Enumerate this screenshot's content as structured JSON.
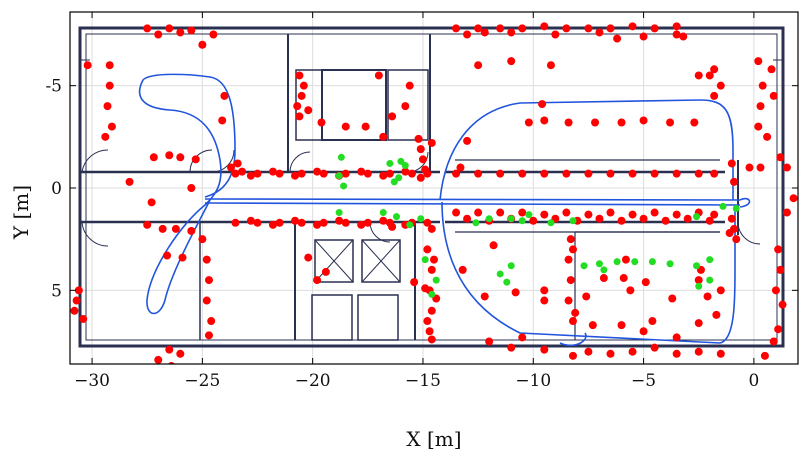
{
  "chart_data": {
    "type": "scatter",
    "title": "",
    "xlabel": "X [m]",
    "ylabel": "Y [m]",
    "xlim": [
      -31,
      2
    ],
    "ylim": [
      -8.6,
      8.6
    ],
    "y_inverted": true,
    "xticks": [
      -30,
      -25,
      -20,
      -15,
      -10,
      -5,
      0
    ],
    "xtick_labels": [
      "−30",
      "−25",
      "−20",
      "−15",
      "−10",
      "−5",
      "0"
    ],
    "yticks": [
      -5,
      0,
      5
    ],
    "ytick_labels": [
      "-5",
      "0",
      "5"
    ],
    "grid": true,
    "colors": {
      "red_points": "#ff0000",
      "green_points": "#22dd22",
      "trajectory": "#2255dd",
      "walls": "#2a3050"
    },
    "series": [
      {
        "kind": "red_points",
        "points": [
          [
            -29.2,
            -5
          ],
          [
            -29.3,
            -4
          ],
          [
            -29.1,
            -3
          ],
          [
            -29.4,
            -2.5
          ],
          [
            -29.2,
            -6
          ],
          [
            -30.2,
            -6
          ],
          [
            -30.8,
            6
          ],
          [
            -30.6,
            5
          ],
          [
            -30.7,
            5.5
          ],
          [
            -30.4,
            6.4
          ],
          [
            -27.5,
            -7.8
          ],
          [
            -26.5,
            -7.8
          ],
          [
            -26,
            -7.6
          ],
          [
            -25.5,
            -7.7
          ],
          [
            -27,
            -7.5
          ],
          [
            -26.5,
            7.9
          ],
          [
            -26,
            8.1
          ],
          [
            -27,
            8.4
          ],
          [
            -26.4,
            8.7
          ],
          [
            -27.2,
            -1.5
          ],
          [
            -26.5,
            -1.6
          ],
          [
            -26,
            -1.5
          ],
          [
            -25.3,
            -1.4
          ],
          [
            -27.5,
            1.8
          ],
          [
            -26.8,
            2
          ],
          [
            -26.2,
            2
          ],
          [
            -25.5,
            2.1
          ],
          [
            -26.6,
            3.3
          ],
          [
            -25.9,
            3.4
          ],
          [
            -25,
            2.5
          ],
          [
            -24.8,
            3.5
          ],
          [
            -24.7,
            4.5
          ],
          [
            -24.8,
            5.5
          ],
          [
            -24.6,
            6.5
          ],
          [
            -24.7,
            7.2
          ],
          [
            -25,
            -7
          ],
          [
            -24.5,
            -7.5
          ],
          [
            -24.1,
            -3.3
          ],
          [
            -24,
            -4.5
          ],
          [
            -23.7,
            -1
          ],
          [
            -23.4,
            -1.2
          ],
          [
            -23.2,
            -0.8
          ],
          [
            -25.5,
            0
          ],
          [
            -27.3,
            0.7
          ],
          [
            -28.3,
            -0.3
          ],
          [
            -23.5,
            -0.7
          ],
          [
            -22.5,
            -0.7
          ],
          [
            -21.5,
            -0.7
          ],
          [
            -20.5,
            -0.7
          ],
          [
            -19.5,
            -0.7
          ],
          [
            -18.5,
            -0.7
          ],
          [
            -17.5,
            -0.7
          ],
          [
            -16.5,
            -0.7
          ],
          [
            -15.5,
            -0.7
          ],
          [
            -14.8,
            -0.7
          ],
          [
            -23.5,
            1.7
          ],
          [
            -22.5,
            1.7
          ],
          [
            -21.5,
            1.7
          ],
          [
            -20.5,
            1.7
          ],
          [
            -19.5,
            1.7
          ],
          [
            -18.5,
            1.7
          ],
          [
            -17.5,
            1.7
          ],
          [
            -16.5,
            1.7
          ],
          [
            -15.5,
            1.7
          ],
          [
            -14.8,
            1.7
          ],
          [
            -22.8,
            -0.6
          ],
          [
            -21.8,
            -0.8
          ],
          [
            -20.8,
            -0.6
          ],
          [
            -19.8,
            -0.8
          ],
          [
            -18.8,
            -0.6
          ],
          [
            -17.8,
            -0.8
          ],
          [
            -16.8,
            -0.6
          ],
          [
            -15.8,
            -0.8
          ],
          [
            -22.8,
            1.6
          ],
          [
            -21.8,
            1.8
          ],
          [
            -20.8,
            1.6
          ],
          [
            -19.8,
            1.8
          ],
          [
            -18.8,
            1.6
          ],
          [
            -17.8,
            1.8
          ],
          [
            -16.8,
            1.6
          ],
          [
            -15.8,
            1.8
          ],
          [
            -20.6,
            -5.5
          ],
          [
            -20.5,
            -4.5
          ],
          [
            -20.6,
            -3.5
          ],
          [
            -20.4,
            -5
          ],
          [
            -20.7,
            -4
          ],
          [
            -20.2,
            -3.8
          ],
          [
            -19.6,
            -3.2
          ],
          [
            -17.6,
            -3
          ],
          [
            -18.5,
            -3
          ],
          [
            -16.8,
            -2.5
          ],
          [
            -15.8,
            -4
          ],
          [
            -15.6,
            -5
          ],
          [
            -17,
            -5.5
          ],
          [
            -16.4,
            -3.5
          ],
          [
            -15.2,
            -2.4
          ],
          [
            -15.1,
            -1.9
          ],
          [
            -15,
            -1.4
          ],
          [
            -14.9,
            -0.9
          ],
          [
            -15.1,
            -0.5
          ],
          [
            -14.6,
            -2.2
          ],
          [
            -14.6,
            2
          ],
          [
            -14.8,
            3
          ],
          [
            -14.6,
            4
          ],
          [
            -14.7,
            5
          ],
          [
            -14.6,
            6
          ],
          [
            -14.7,
            7
          ],
          [
            -14.5,
            3.5
          ],
          [
            -14.8,
            6.5
          ],
          [
            -14.6,
            7.4
          ],
          [
            -14.4,
            5.4
          ],
          [
            -20.2,
            3.4
          ],
          [
            -19.4,
            4.1
          ],
          [
            -19.8,
            4.5
          ],
          [
            -15.4,
            4.6
          ],
          [
            -14.9,
            4.9
          ],
          [
            -16.4,
            1.9
          ],
          [
            -13.5,
            -7.8
          ],
          [
            -12.5,
            -7.8
          ],
          [
            -11.5,
            -7.8
          ],
          [
            -10.5,
            -7.8
          ],
          [
            -9.5,
            -7.9
          ],
          [
            -8.5,
            -7.8
          ],
          [
            -7.5,
            -7.8
          ],
          [
            -6.5,
            -7.8
          ],
          [
            -5.5,
            -7.9
          ],
          [
            -4.5,
            -7.8
          ],
          [
            -3.5,
            -7.9
          ],
          [
            -13,
            -7.5
          ],
          [
            -11,
            -7.6
          ],
          [
            -9,
            -7.5
          ],
          [
            -7,
            -7.6
          ],
          [
            -6.2,
            -7.3
          ],
          [
            -5,
            -7.4
          ],
          [
            -3.2,
            -7.4
          ],
          [
            -12.2,
            -7.6
          ],
          [
            -13.5,
            -0.7
          ],
          [
            -12.5,
            -0.7
          ],
          [
            -11.5,
            -0.7
          ],
          [
            -10.5,
            -0.7
          ],
          [
            -9.5,
            -0.7
          ],
          [
            -8.5,
            -0.7
          ],
          [
            -7.5,
            -0.7
          ],
          [
            -6.5,
            -0.7
          ],
          [
            -5.5,
            -0.7
          ],
          [
            -4.5,
            -0.7
          ],
          [
            -3.5,
            -0.7
          ],
          [
            -2.5,
            -0.7
          ],
          [
            -1.8,
            -0.7
          ],
          [
            -13.5,
            1.2
          ],
          [
            -12.5,
            1.2
          ],
          [
            -11.5,
            1.2
          ],
          [
            -10.5,
            1.2
          ],
          [
            -9.5,
            1.3
          ],
          [
            -8.5,
            1.2
          ],
          [
            -7.5,
            1.3
          ],
          [
            -6.5,
            1.2
          ],
          [
            -5.5,
            1.3
          ],
          [
            -4.5,
            1.2
          ],
          [
            -3.5,
            1.3
          ],
          [
            -2.5,
            1.2
          ],
          [
            -1.8,
            1.3
          ],
          [
            -13,
            1.5
          ],
          [
            -12,
            1.6
          ],
          [
            -11,
            1.5
          ],
          [
            -10,
            1.6
          ],
          [
            -9,
            1.5
          ],
          [
            -8,
            1.6
          ],
          [
            -7,
            1.5
          ],
          [
            -6,
            1.6
          ],
          [
            -5,
            1.5
          ],
          [
            -4,
            1.6
          ],
          [
            -3,
            1.5
          ],
          [
            -2,
            1.6
          ],
          [
            -9.5,
            -3.3
          ],
          [
            -8.4,
            -3.2
          ],
          [
            -7.2,
            -3.2
          ],
          [
            -6,
            -3.2
          ],
          [
            -5,
            -3.3
          ],
          [
            -3.8,
            -3.2
          ],
          [
            -2.7,
            -3.2
          ],
          [
            -11,
            -6.2
          ],
          [
            -12.5,
            -6
          ],
          [
            -9.6,
            -4.1
          ],
          [
            -9.2,
            -6
          ],
          [
            -2,
            -5.5
          ],
          [
            -1.8,
            -4.5
          ],
          [
            -1.5,
            -5
          ],
          [
            -1.8,
            -5.8
          ],
          [
            -10.2,
            -3.2
          ],
          [
            -8.3,
            2.5
          ],
          [
            -8.4,
            3.5
          ],
          [
            -8.3,
            4.5
          ],
          [
            -8.4,
            5.5
          ],
          [
            -8.2,
            6.5
          ],
          [
            -8.1,
            6.1
          ],
          [
            -7.6,
            5.3
          ],
          [
            -8.2,
            3
          ],
          [
            -5.8,
            3.5
          ],
          [
            -5.9,
            4.4
          ],
          [
            -5.6,
            5
          ],
          [
            -4.6,
            6.5
          ],
          [
            -3.5,
            7.3
          ],
          [
            -2.5,
            4.5
          ],
          [
            -2.1,
            5.3
          ],
          [
            -2.4,
            4
          ],
          [
            -1.7,
            6.2
          ],
          [
            -1.5,
            5
          ],
          [
            -6.8,
            4.4
          ],
          [
            -4.9,
            4.6
          ],
          [
            -3.7,
            5.4
          ],
          [
            -9.5,
            5.5
          ],
          [
            -7.3,
            6.7
          ],
          [
            -6,
            6.7
          ],
          [
            -5,
            7
          ],
          [
            -2.5,
            6.6
          ],
          [
            -12,
            7.5
          ],
          [
            -11,
            7.8
          ],
          [
            -9.5,
            7.9
          ],
          [
            -8.2,
            8.2
          ],
          [
            -7.5,
            8
          ],
          [
            -6.5,
            8.1
          ],
          [
            -5.5,
            8
          ],
          [
            -4.5,
            7.8
          ],
          [
            -3.5,
            8.1
          ],
          [
            -2.5,
            8
          ],
          [
            -1.5,
            8.1
          ],
          [
            -10.5,
            7.3
          ],
          [
            -9.5,
            5
          ],
          [
            -10.8,
            5.1
          ],
          [
            -12.2,
            5.3
          ],
          [
            -11.8,
            2.8
          ],
          [
            -13.2,
            4
          ],
          [
            -1,
            -1.2
          ],
          [
            -0.9,
            -0.3
          ],
          [
            -1,
            1.5
          ],
          [
            -0.9,
            2
          ],
          [
            -0.8,
            2.5
          ],
          [
            -1.1,
            2.2
          ],
          [
            0.2,
            -3
          ],
          [
            0.3,
            -4
          ],
          [
            0.4,
            -5
          ],
          [
            0.9,
            -4.5
          ],
          [
            0.6,
            -2.5
          ],
          [
            0.3,
            -1
          ],
          [
            -0.2,
            -1
          ],
          [
            1.2,
            -1.5
          ],
          [
            1.5,
            -1
          ],
          [
            1.8,
            0.5
          ],
          [
            1.5,
            1.2
          ],
          [
            1.1,
            3
          ],
          [
            1.2,
            4
          ],
          [
            1,
            5
          ],
          [
            1.3,
            5.7
          ],
          [
            1.1,
            6.9
          ],
          [
            0.9,
            7.5
          ],
          [
            0.5,
            8.2
          ],
          [
            0.8,
            -5.8
          ],
          [
            0.2,
            -6.2
          ],
          [
            -3.5,
            -7.5
          ],
          [
            -2.5,
            -5.5
          ],
          [
            -13.3,
            -1
          ],
          [
            -13,
            -2.3
          ]
        ]
      },
      {
        "kind": "green_points",
        "points": [
          [
            -18.7,
            -1.5
          ],
          [
            -18.8,
            -0.6
          ],
          [
            -18.6,
            -0.1
          ],
          [
            -16.5,
            -1.2
          ],
          [
            -16,
            -1.3
          ],
          [
            -15.8,
            -1.1
          ],
          [
            -16.3,
            -0.3
          ],
          [
            -16.1,
            -0.5
          ],
          [
            -18.8,
            1.2
          ],
          [
            -16.8,
            1.2
          ],
          [
            -16.2,
            1.4
          ],
          [
            -15.6,
            1.8
          ],
          [
            -15.1,
            1.5
          ],
          [
            -14.9,
            3.5
          ],
          [
            -14.4,
            4.5
          ],
          [
            -14.6,
            5.2
          ],
          [
            -11.5,
            4.2
          ],
          [
            -11.2,
            4.6
          ],
          [
            -11,
            3.8
          ],
          [
            -12.6,
            1.7
          ],
          [
            -12,
            1.5
          ],
          [
            -11,
            1.5
          ],
          [
            -10.5,
            1.6
          ],
          [
            -10.2,
            1.3
          ],
          [
            -9.2,
            1.7
          ],
          [
            -8.2,
            1.6
          ],
          [
            -7.7,
            3.8
          ],
          [
            -7,
            3.7
          ],
          [
            -6.2,
            3.6
          ],
          [
            -5.4,
            3.6
          ],
          [
            -4.6,
            3.6
          ],
          [
            -3.8,
            3.7
          ],
          [
            -2.6,
            3.8
          ],
          [
            -2,
            3.5
          ],
          [
            -2,
            4.5
          ],
          [
            -2.5,
            4.8
          ],
          [
            -1.4,
            0.9
          ],
          [
            -0.8,
            1
          ],
          [
            -2.6,
            1.4
          ],
          [
            -6.8,
            4
          ]
        ]
      }
    ]
  }
}
